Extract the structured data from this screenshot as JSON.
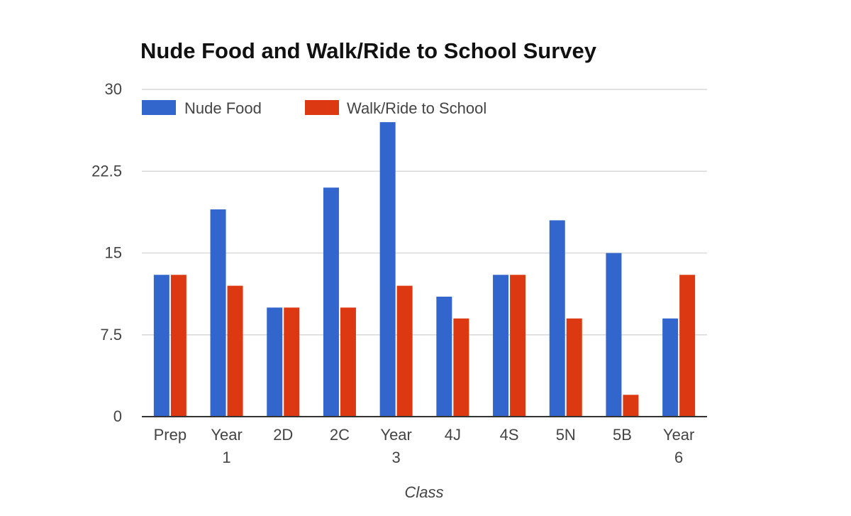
{
  "chart_data": {
    "type": "bar",
    "title": "Nude Food and Walk/Ride to School Survey",
    "xlabel": "Class",
    "ylabel": "",
    "categories": [
      [
        "Prep"
      ],
      [
        "Year",
        "1"
      ],
      [
        "2D"
      ],
      [
        "2C"
      ],
      [
        "Year",
        "3"
      ],
      [
        "4J"
      ],
      [
        "4S"
      ],
      [
        "5N"
      ],
      [
        "5B"
      ],
      [
        "Year",
        "6"
      ]
    ],
    "series": [
      {
        "name": "Nude Food",
        "color": "#3366cc",
        "values": [
          13,
          19,
          10,
          21,
          27,
          11,
          13,
          18,
          15,
          9
        ]
      },
      {
        "name": "Walk/Ride to School",
        "color": "#dc3912",
        "values": [
          13,
          12,
          10,
          10,
          12,
          9,
          13,
          9,
          2,
          13
        ]
      }
    ],
    "ylim": [
      0,
      30
    ],
    "yticks": [
      "0",
      "7.5",
      "15",
      "22.5",
      "30"
    ],
    "grid": true,
    "legend_position": "top-left"
  }
}
